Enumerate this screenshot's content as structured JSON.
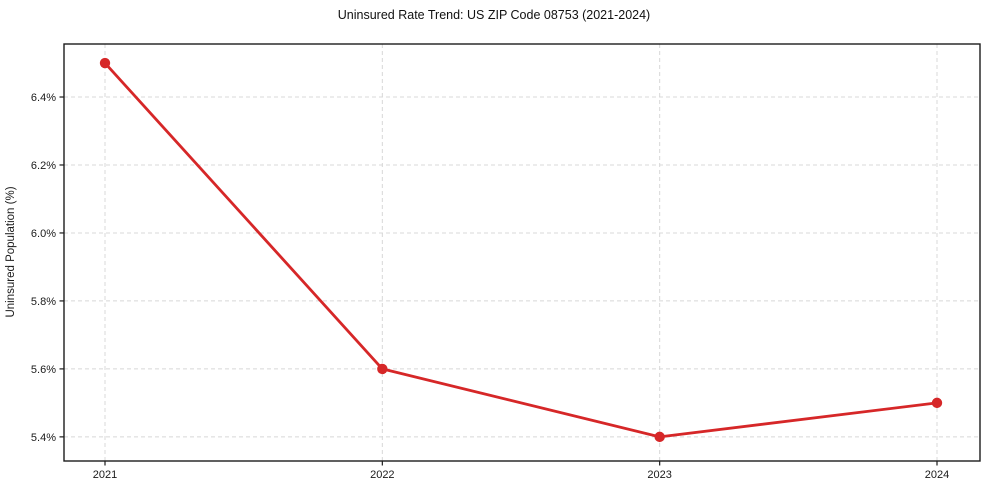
{
  "page": {
    "background": "#ffffff"
  },
  "chart_data": {
    "type": "line",
    "title": "Uninsured Rate Trend: US ZIP Code 08753 (2021-2024)",
    "xlabel": "",
    "ylabel": "Uninsured Population (%)",
    "categories": [
      "2021",
      "2022",
      "2023",
      "2024"
    ],
    "values": [
      6.5,
      5.6,
      5.4,
      5.5
    ],
    "y_ticks": [
      5.4,
      5.6,
      5.8,
      6.0,
      6.2,
      6.4
    ],
    "y_tick_labels": [
      "5.4%",
      "5.6%",
      "5.8%",
      "6.0%",
      "6.2%",
      "6.4%"
    ],
    "ylim": [
      5.329,
      6.556
    ],
    "grid": "dashed-both",
    "legend": "none",
    "marker": "circle",
    "colors": {
      "line": "#d62728",
      "marker": "#d62728",
      "grid": "#d8d8d8",
      "axis": "#1c1c1c",
      "text": "#1a1a1a"
    }
  }
}
